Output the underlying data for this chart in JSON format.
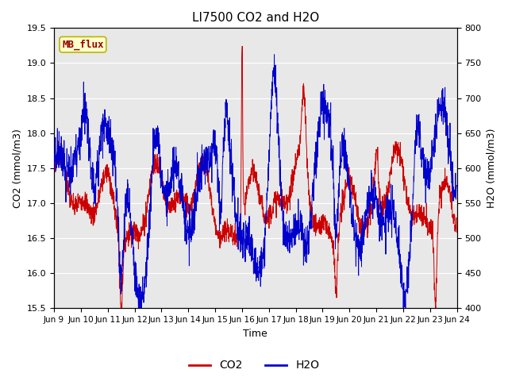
{
  "title": "LI7500 CO2 and H2O",
  "xlabel": "Time",
  "ylabel_left": "CO2 (mmol/m3)",
  "ylabel_right": "H2O (mmol/m3)",
  "ylim_left": [
    15.5,
    19.5
  ],
  "ylim_right": [
    400,
    800
  ],
  "co2_color": "#cc0000",
  "h2o_color": "#0000cc",
  "plot_bg_color": "#e8e8e8",
  "label_box_facecolor": "#ffffcc",
  "label_box_edgecolor": "#b8b800",
  "label_text": "MB_flux",
  "label_text_color": "#990000",
  "xtick_labels": [
    "Jun 9",
    "Jun 10",
    "Jun 11",
    "Jun 12",
    "Jun 13",
    "Jun 14",
    "Jun 15",
    "Jun 16",
    "Jun 17",
    "Jun 18",
    "Jun 19",
    "Jun 20",
    "Jun 21",
    "Jun 22",
    "Jun 23",
    "Jun 24"
  ],
  "yticks_left": [
    15.5,
    16.0,
    16.5,
    17.0,
    17.5,
    18.0,
    18.5,
    19.0,
    19.5
  ],
  "yticks_right": [
    400,
    450,
    500,
    550,
    600,
    650,
    700,
    750,
    800
  ],
  "legend_co2": "CO2",
  "legend_h2o": "H2O",
  "n_days": 15,
  "n_points": 2000
}
